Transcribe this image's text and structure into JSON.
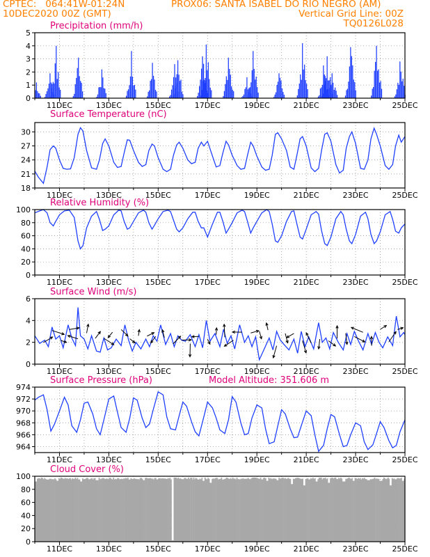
{
  "header": {
    "left_line1": "CPTEC:   064:41W-01:24N",
    "center_line1": "PROX06: SANTA ISABEL DO RIO NEGRO (AM)",
    "left_line2": "10DEC2020 00Z (GMT)",
    "right_line2": "Vertical Grid Line: 00Z",
    "right_line3": "TQ0126L028"
  },
  "colors": {
    "header": "#ff8000",
    "title": "#e0007a",
    "series": "#1f3fff",
    "cloud": "#a8a8a8",
    "arrow": "#000000",
    "grid": "#888888"
  },
  "x_tick_labels": [
    "11DEC",
    "13DEC",
    "15DEC",
    "17DEC",
    "19DEC",
    "21DEC",
    "23DEC",
    "25DEC"
  ],
  "chart_data": [
    {
      "type": "bar",
      "title": "Precipitation (mm/h)",
      "ylim": [
        0,
        5
      ],
      "yticks": [
        0,
        1,
        2,
        3,
        4,
        5
      ],
      "x_range": [
        "10DEC2020 00Z",
        "25DEC2020 00Z"
      ],
      "grid": true,
      "event_peaks": [
        [
          10.05,
          1.2
        ],
        [
          10.6,
          1.9
        ],
        [
          10.85,
          4.0
        ],
        [
          11.75,
          3.1
        ],
        [
          12.7,
          2.2
        ],
        [
          13.9,
          3.6
        ],
        [
          14.75,
          2.7
        ],
        [
          15.65,
          2.6
        ],
        [
          15.8,
          2.9
        ],
        [
          16.8,
          3.2
        ],
        [
          16.95,
          4.1
        ],
        [
          17.85,
          3.1
        ],
        [
          18.6,
          1.6
        ],
        [
          18.85,
          3.6
        ],
        [
          19.9,
          1.9
        ],
        [
          20.85,
          4.2
        ],
        [
          21.7,
          2.5
        ],
        [
          21.85,
          3.2
        ],
        [
          22.05,
          1.9
        ],
        [
          22.8,
          3.9
        ],
        [
          23.85,
          4.0
        ],
        [
          24.8,
          2.8
        ]
      ]
    },
    {
      "type": "line",
      "title": "Surface Temperature (nC)",
      "ylim": [
        18,
        32
      ],
      "yticks": [
        18,
        21,
        24,
        27,
        30
      ],
      "grid": true,
      "x": [
        10.0,
        10.15,
        10.35,
        10.5,
        10.62,
        10.75,
        10.85,
        11.0,
        11.15,
        11.3,
        11.45,
        11.6,
        11.75,
        11.85,
        11.95,
        12.1,
        12.3,
        12.5,
        12.62,
        12.75,
        12.85,
        13.0,
        13.2,
        13.35,
        13.5,
        13.62,
        13.75,
        13.85,
        14.0,
        14.2,
        14.35,
        14.5,
        14.62,
        14.75,
        14.85,
        15.0,
        15.2,
        15.35,
        15.5,
        15.62,
        15.75,
        15.85,
        16.0,
        16.2,
        16.35,
        16.5,
        16.62,
        16.75,
        16.85,
        17.0,
        17.2,
        17.35,
        17.5,
        17.62,
        17.75,
        17.85,
        18.0,
        18.2,
        18.35,
        18.5,
        18.62,
        18.75,
        18.85,
        19.0,
        19.2,
        19.35,
        19.5,
        19.62,
        19.75,
        19.85,
        20.0,
        20.2,
        20.35,
        20.5,
        20.62,
        20.75,
        20.85,
        21.0,
        21.2,
        21.35,
        21.5,
        21.62,
        21.75,
        21.85,
        22.0,
        22.2,
        22.35,
        22.5,
        22.62,
        22.75,
        22.85,
        23.0,
        23.2,
        23.35,
        23.5,
        23.62,
        23.75,
        23.85,
        24.0,
        24.2,
        24.35,
        24.5,
        24.62,
        24.75,
        24.85,
        25.0
      ],
      "y": [
        21.6,
        20.3,
        19.0,
        22.5,
        26.2,
        27.0,
        26.5,
        24.0,
        22.2,
        22.0,
        22.1,
        24.5,
        29.5,
        30.9,
        30.2,
        26.0,
        22.3,
        22.0,
        24.0,
        27.5,
        28.5,
        27.0,
        23.5,
        22.4,
        22.6,
        25.5,
        28.3,
        28.2,
        26.0,
        23.5,
        22.6,
        23.0,
        26.0,
        27.4,
        27.0,
        24.5,
        22.0,
        21.5,
        22.0,
        25.0,
        27.2,
        27.8,
        26.5,
        24.0,
        23.2,
        23.5,
        26.5,
        27.8,
        27.0,
        28.0,
        24.8,
        22.5,
        22.8,
        25.5,
        28.0,
        27.2,
        25.0,
        22.8,
        22.0,
        22.2,
        25.0,
        27.8,
        27.0,
        24.8,
        22.5,
        21.8,
        22.0,
        25.0,
        29.5,
        29.8,
        28.5,
        26.0,
        22.5,
        22.0,
        25.0,
        28.5,
        29.0,
        27.0,
        22.3,
        21.5,
        22.2,
        26.0,
        29.5,
        29.8,
        28.0,
        23.0,
        21.2,
        21.8,
        26.5,
        29.0,
        30.0,
        27.5,
        22.2,
        22.0,
        24.0,
        28.5,
        30.8,
        29.5,
        27.0,
        22.8,
        22.0,
        23.0,
        27.0,
        29.3,
        27.8,
        29.0
      ]
    },
    {
      "type": "line",
      "title": "Relative Humidity (%)",
      "ylim": [
        0,
        100
      ],
      "yticks": [
        0,
        20,
        40,
        60,
        80,
        100
      ],
      "grid": true,
      "x": [
        10.0,
        10.2,
        10.35,
        10.5,
        10.62,
        10.75,
        10.85,
        11.0,
        11.2,
        11.4,
        11.6,
        11.75,
        11.85,
        11.95,
        12.1,
        12.3,
        12.5,
        12.62,
        12.75,
        12.85,
        13.0,
        13.2,
        13.4,
        13.5,
        13.62,
        13.75,
        13.85,
        14.0,
        14.2,
        14.4,
        14.5,
        14.62,
        14.75,
        14.85,
        15.0,
        15.2,
        15.4,
        15.5,
        15.62,
        15.75,
        15.85,
        16.0,
        16.2,
        16.4,
        16.5,
        16.62,
        16.75,
        16.85,
        17.0,
        17.2,
        17.4,
        17.5,
        17.62,
        17.75,
        17.85,
        18.0,
        18.2,
        18.4,
        18.5,
        18.62,
        18.75,
        18.85,
        19.0,
        19.2,
        19.4,
        19.5,
        19.62,
        19.75,
        19.85,
        20.0,
        20.2,
        20.4,
        20.5,
        20.62,
        20.75,
        20.85,
        21.0,
        21.2,
        21.4,
        21.5,
        21.62,
        21.75,
        21.85,
        22.0,
        22.2,
        22.4,
        22.5,
        22.62,
        22.75,
        22.85,
        23.0,
        23.2,
        23.4,
        23.5,
        23.62,
        23.75,
        23.85,
        24.0,
        24.2,
        24.4,
        24.5,
        24.62,
        24.75,
        24.85,
        25.0
      ],
      "y": [
        95,
        98,
        100,
        95,
        80,
        75,
        82,
        92,
        98,
        99,
        88,
        52,
        40,
        45,
        72,
        90,
        97,
        85,
        68,
        70,
        75,
        92,
        99,
        98,
        82,
        70,
        72,
        82,
        95,
        99,
        96,
        80,
        70,
        76,
        86,
        97,
        99,
        97,
        84,
        70,
        66,
        72,
        86,
        96,
        96,
        82,
        72,
        72,
        58,
        78,
        96,
        96,
        82,
        64,
        70,
        80,
        95,
        99,
        97,
        82,
        64,
        72,
        82,
        95,
        100,
        97,
        78,
        52,
        50,
        60,
        82,
        97,
        98,
        78,
        58,
        55,
        70,
        92,
        97,
        93,
        68,
        48,
        45,
        58,
        86,
        97,
        92,
        70,
        52,
        48,
        62,
        90,
        96,
        86,
        62,
        48,
        52,
        66,
        92,
        97,
        85,
        67,
        64,
        72,
        78
      ]
    },
    {
      "type": "line",
      "title": "Surface Wind (m/s)",
      "ylim": [
        0,
        6
      ],
      "yticks": [
        0,
        2,
        4,
        6
      ],
      "grid": true,
      "x": [
        10.0,
        10.2,
        10.4,
        10.55,
        10.7,
        10.85,
        11.0,
        11.15,
        11.35,
        11.5,
        11.65,
        11.75,
        11.85,
        12.0,
        12.15,
        12.3,
        12.5,
        12.65,
        12.8,
        12.95,
        13.1,
        13.3,
        13.5,
        13.65,
        13.8,
        13.95,
        14.1,
        14.3,
        14.5,
        14.65,
        14.8,
        14.95,
        15.1,
        15.3,
        15.5,
        15.65,
        15.8,
        15.95,
        16.1,
        16.3,
        16.5,
        16.65,
        16.8,
        16.95,
        17.1,
        17.3,
        17.5,
        17.65,
        17.8,
        17.95,
        18.1,
        18.3,
        18.5,
        18.65,
        18.8,
        18.95,
        19.1,
        19.3,
        19.5,
        19.65,
        19.8,
        19.95,
        20.1,
        20.3,
        20.5,
        20.65,
        20.8,
        20.95,
        21.1,
        21.3,
        21.5,
        21.65,
        21.8,
        21.95,
        22.1,
        22.3,
        22.5,
        22.65,
        22.8,
        22.95,
        23.1,
        23.3,
        23.5,
        23.65,
        23.8,
        23.95,
        24.1,
        24.3,
        24.5,
        24.65,
        24.8,
        24.95,
        25.0
      ],
      "y": [
        2.6,
        1.9,
        2.2,
        1.6,
        3.4,
        2.3,
        2.6,
        1.5,
        3.6,
        2.4,
        1.7,
        5.2,
        2.6,
        2.3,
        1.4,
        2.6,
        1.2,
        1.1,
        2.4,
        1.3,
        1.5,
        2.3,
        1.7,
        3.6,
        2.2,
        1.2,
        2.0,
        1.4,
        2.3,
        1.6,
        2.6,
        2.1,
        3.6,
        1.8,
        2.8,
        1.6,
        2.6,
        2.2,
        2.1,
        2.7,
        1.6,
        2.7,
        1.5,
        4.0,
        2.1,
        2.8,
        1.6,
        3.2,
        1.9,
        2.6,
        1.4,
        3.6,
        2.0,
        2.6,
        1.6,
        2.5,
        0.4,
        1.4,
        2.4,
        1.3,
        3.0,
        2.2,
        1.8,
        1.3,
        2.3,
        1.0,
        3.0,
        1.6,
        2.5,
        1.4,
        3.8,
        2.0,
        2.4,
        1.4,
        2.9,
        2.0,
        1.3,
        2.8,
        1.8,
        3.0,
        2.2,
        1.3,
        2.8,
        1.8,
        2.9,
        2.0,
        1.5,
        2.5,
        1.7,
        4.4,
        2.5,
        2.9,
        2.7
      ]
    },
    {
      "type": "line",
      "title": "Surface Pressure (hPa)",
      "annotation": "Model Altitude: 351.606 m",
      "ylim": [
        963,
        974
      ],
      "yticks": [
        964,
        966,
        968,
        970,
        972,
        974
      ],
      "grid": true,
      "x": [
        10.0,
        10.15,
        10.35,
        10.5,
        10.65,
        10.8,
        11.0,
        11.2,
        11.35,
        11.5,
        11.7,
        11.85,
        12.0,
        12.15,
        12.35,
        12.5,
        12.65,
        12.8,
        13.0,
        13.2,
        13.35,
        13.5,
        13.7,
        13.85,
        14.0,
        14.15,
        14.35,
        14.5,
        14.65,
        14.8,
        15.0,
        15.2,
        15.35,
        15.5,
        15.7,
        15.85,
        16.0,
        16.15,
        16.35,
        16.5,
        16.65,
        16.8,
        17.0,
        17.2,
        17.35,
        17.5,
        17.7,
        17.85,
        18.0,
        18.15,
        18.35,
        18.5,
        18.65,
        18.8,
        19.0,
        19.2,
        19.35,
        19.5,
        19.7,
        19.85,
        20.0,
        20.15,
        20.35,
        20.5,
        20.65,
        20.8,
        21.0,
        21.2,
        21.35,
        21.5,
        21.7,
        21.85,
        22.0,
        22.15,
        22.35,
        22.5,
        22.65,
        22.8,
        23.0,
        23.2,
        23.35,
        23.5,
        23.7,
        23.85,
        24.0,
        24.15,
        24.35,
        24.5,
        24.65,
        24.8,
        25.0
      ],
      "y": [
        971.8,
        972.3,
        972.7,
        970.2,
        966.6,
        967.8,
        970.0,
        972.3,
        971.0,
        967.5,
        966.4,
        968.5,
        971.3,
        971.5,
        969.5,
        967.0,
        966.0,
        968.5,
        972.0,
        972.5,
        969.8,
        967.2,
        966.4,
        968.8,
        972.2,
        971.8,
        968.8,
        967.2,
        967.8,
        970.2,
        973.2,
        972.7,
        969.0,
        967.0,
        966.8,
        969.2,
        971.5,
        970.8,
        968.2,
        966.5,
        965.8,
        968.2,
        971.5,
        970.5,
        968.8,
        966.8,
        966.2,
        968.5,
        972.4,
        971.5,
        968.0,
        966.0,
        966.2,
        968.8,
        971.0,
        970.5,
        967.0,
        964.5,
        964.8,
        967.5,
        970.2,
        969.5,
        967.0,
        965.5,
        965.6,
        967.5,
        970.0,
        969.2,
        966.0,
        963.2,
        964.2,
        967.0,
        969.4,
        969.0,
        966.0,
        964.0,
        964.2,
        966.0,
        968.0,
        967.5,
        964.8,
        963.5,
        964.3,
        966.2,
        968.2,
        967.2,
        965.0,
        963.8,
        964.2,
        966.5,
        968.5
      ]
    },
    {
      "type": "area",
      "title": "Cloud Cover (%)",
      "ylim": [
        0,
        100
      ],
      "yticks": [
        0,
        20,
        40,
        60,
        80,
        100
      ],
      "grid": true,
      "base_percent": 98,
      "dips": [
        [
          10.0,
          92
        ],
        [
          10.5,
          95
        ],
        [
          10.9,
          93
        ],
        [
          11.55,
          96
        ],
        [
          11.85,
          92
        ],
        [
          12.5,
          94
        ],
        [
          13.8,
          95
        ],
        [
          14.05,
          96
        ],
        [
          14.4,
          94
        ],
        [
          15.55,
          2
        ],
        [
          16.6,
          95
        ],
        [
          16.8,
          93
        ],
        [
          17.1,
          90
        ],
        [
          17.6,
          95
        ],
        [
          18.5,
          96
        ],
        [
          19.4,
          93
        ],
        [
          19.8,
          94
        ],
        [
          20.4,
          88
        ],
        [
          20.9,
          86
        ],
        [
          21.4,
          92
        ],
        [
          21.9,
          90
        ],
        [
          22.5,
          92
        ],
        [
          22.9,
          93
        ],
        [
          23.5,
          94
        ],
        [
          24.0,
          93
        ],
        [
          24.4,
          86
        ],
        [
          24.9,
          93
        ]
      ]
    }
  ]
}
